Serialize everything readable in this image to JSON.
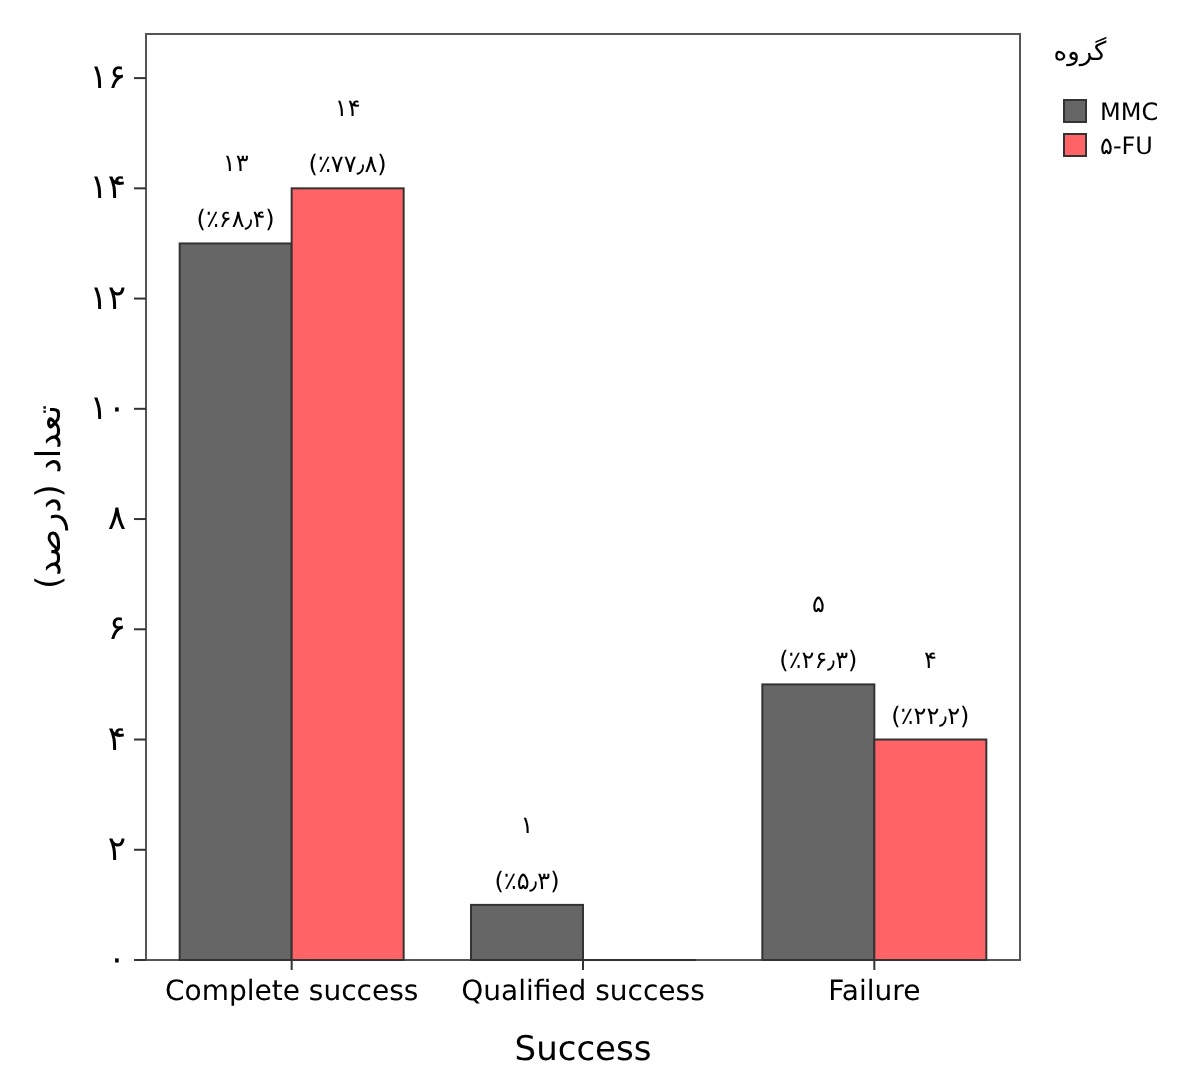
{
  "chart_data": {
    "type": "bar",
    "xlabel": "Success",
    "ylabel": "تعداد (درصد)",
    "legend_title": "گروه",
    "legend": "top right",
    "grid": false,
    "categories": [
      "Complete success",
      "Qualified success",
      "Failure"
    ],
    "ylim": [
      0,
      16.8
    ],
    "yticks": [
      {
        "value": 0,
        "label": "۰"
      },
      {
        "value": 2,
        "label": "۲"
      },
      {
        "value": 4,
        "label": "۴"
      },
      {
        "value": 6,
        "label": "۶"
      },
      {
        "value": 8,
        "label": "۸"
      },
      {
        "value": 10,
        "label": "۱۰"
      },
      {
        "value": 12,
        "label": "۱۲"
      },
      {
        "value": 14,
        "label": "۱۴"
      },
      {
        "value": 16,
        "label": "۱۶"
      }
    ],
    "series": [
      {
        "name": "MMC",
        "color": "#666666",
        "values": [
          13,
          1,
          5
        ],
        "value_labels": [
          "۱۳\n(٪۶۸٫۴)",
          "۱\n(٪۵٫۳)",
          "۵\n(٪۲۶٫۳)"
        ]
      },
      {
        "name": "۵-FU",
        "color": "#ff6366",
        "values": [
          14,
          0,
          4
        ],
        "value_labels": [
          "۱۴\n(٪۷۷٫۸)",
          null,
          "۴\n(٪۲۲٫۲)"
        ]
      }
    ]
  }
}
